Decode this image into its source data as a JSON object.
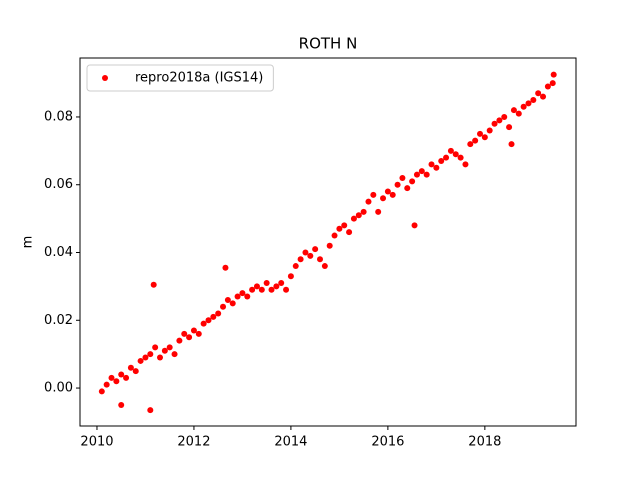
{
  "chart_data": {
    "type": "scatter",
    "title": "ROTH N",
    "ylabel": "m",
    "x": [
      2010.1,
      2010.2,
      2010.3,
      2010.4,
      2010.5,
      2010.6,
      2010.7,
      2010.8,
      2010.9,
      2011.0,
      2011.1,
      2011.2,
      2011.3,
      2011.4,
      2011.5,
      2011.6,
      2011.7,
      2011.8,
      2011.9,
      2012.0,
      2012.1,
      2012.2,
      2012.3,
      2012.4,
      2012.5,
      2012.6,
      2012.7,
      2012.8,
      2012.9,
      2013.0,
      2013.1,
      2013.2,
      2013.3,
      2013.4,
      2013.5,
      2013.6,
      2013.7,
      2013.8,
      2013.9,
      2014.0,
      2014.1,
      2014.2,
      2014.3,
      2014.4,
      2014.5,
      2014.6,
      2014.7,
      2014.8,
      2014.9,
      2015.0,
      2015.1,
      2015.2,
      2015.3,
      2015.4,
      2015.5,
      2015.6,
      2015.7,
      2015.8,
      2015.9,
      2016.0,
      2016.1,
      2016.2,
      2016.3,
      2016.4,
      2016.5,
      2016.6,
      2016.7,
      2016.8,
      2016.9,
      2017.0,
      2017.1,
      2017.2,
      2017.3,
      2017.4,
      2017.5,
      2017.6,
      2017.7,
      2017.8,
      2017.9,
      2018.0,
      2018.1,
      2018.2,
      2018.3,
      2018.4,
      2018.5,
      2018.6,
      2018.7,
      2018.8,
      2018.9,
      2019.0,
      2019.1,
      2019.2,
      2019.3,
      2019.4,
      2011.17,
      2011.1,
      2016.55,
      2018.55,
      2012.65,
      2010.5,
      2019.42
    ],
    "series": [
      {
        "name": "repro2018a (IGS14)",
        "color": "#ff0000",
        "values": [
          -0.001,
          0.001,
          0.003,
          0.002,
          0.004,
          0.003,
          0.006,
          0.005,
          0.008,
          0.009,
          0.01,
          0.012,
          0.009,
          0.011,
          0.012,
          0.01,
          0.014,
          0.016,
          0.015,
          0.017,
          0.016,
          0.019,
          0.02,
          0.021,
          0.022,
          0.024,
          0.026,
          0.025,
          0.027,
          0.028,
          0.027,
          0.029,
          0.03,
          0.029,
          0.031,
          0.029,
          0.03,
          0.031,
          0.029,
          0.033,
          0.036,
          0.038,
          0.04,
          0.039,
          0.041,
          0.038,
          0.036,
          0.042,
          0.045,
          0.047,
          0.048,
          0.046,
          0.05,
          0.051,
          0.052,
          0.055,
          0.057,
          0.052,
          0.056,
          0.058,
          0.057,
          0.06,
          0.062,
          0.059,
          0.061,
          0.063,
          0.064,
          0.063,
          0.066,
          0.065,
          0.067,
          0.068,
          0.07,
          0.069,
          0.068,
          0.066,
          0.072,
          0.073,
          0.075,
          0.074,
          0.076,
          0.078,
          0.079,
          0.08,
          0.077,
          0.082,
          0.081,
          0.083,
          0.084,
          0.085,
          0.087,
          0.086,
          0.089,
          0.09,
          0.0305,
          -0.0065,
          0.048,
          0.072,
          0.0355,
          -0.005,
          0.0925
        ]
      }
    ],
    "xlim": [
      2009.65,
      2019.88
    ],
    "ylim": [
      -0.0112,
      0.0974
    ],
    "xticks": [
      2010,
      2012,
      2014,
      2016,
      2018
    ],
    "yticks": [
      {
        "value": 0,
        "label": "0.00"
      },
      {
        "value": 0.02,
        "label": "0.02"
      },
      {
        "value": 0.04,
        "label": "0.04"
      },
      {
        "value": 0.06,
        "label": "0.06"
      },
      {
        "value": 0.08,
        "label": "0.08"
      }
    ],
    "legend": "upper-left"
  }
}
